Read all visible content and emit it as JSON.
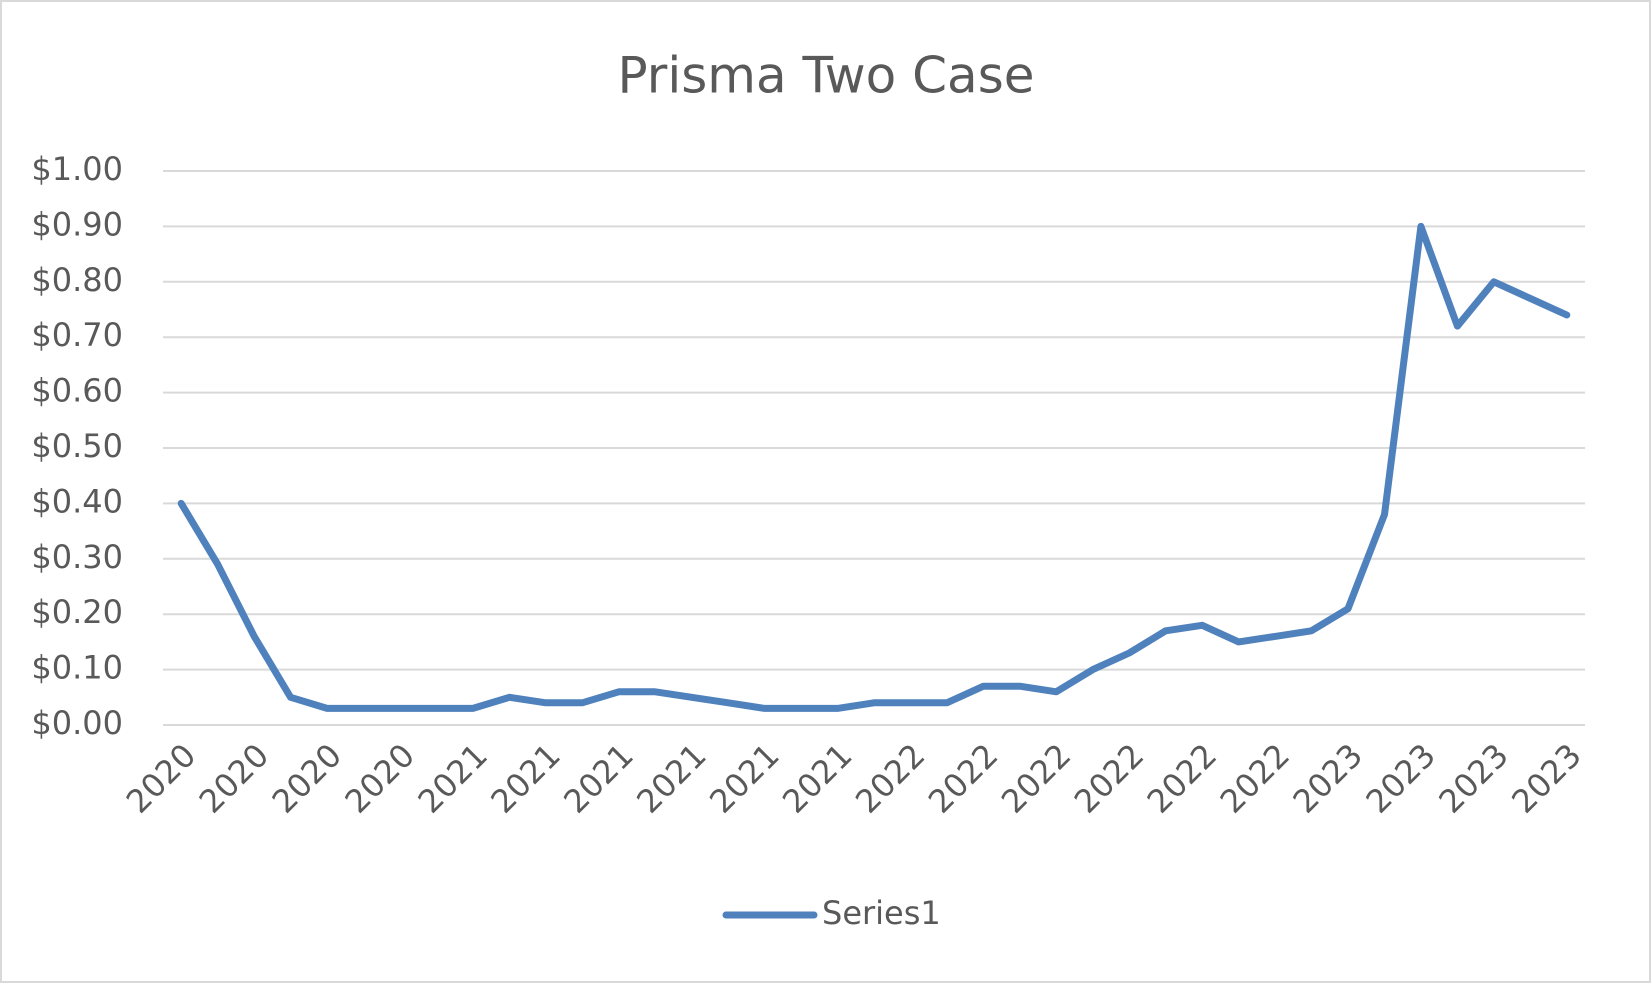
{
  "chart_data": {
    "type": "line",
    "title": "Prisma Two Case",
    "categories": [
      "2020",
      null,
      "2020",
      null,
      "2020",
      null,
      "2020",
      null,
      "2021",
      null,
      "2021",
      null,
      "2021",
      null,
      "2021",
      null,
      "2021",
      null,
      "2021",
      null,
      "2022",
      null,
      "2022",
      null,
      "2022",
      null,
      "2022",
      null,
      "2022",
      null,
      "2022",
      null,
      "2023",
      null,
      "2023",
      null,
      "2023",
      null,
      "2023"
    ],
    "series": [
      {
        "name": "Series1",
        "color": "#4f81bd",
        "values": [
          0.4,
          0.29,
          0.16,
          0.05,
          0.03,
          0.03,
          0.03,
          0.03,
          0.03,
          0.05,
          0.04,
          0.04,
          0.06,
          0.06,
          0.05,
          0.04,
          0.03,
          0.03,
          0.03,
          0.04,
          0.04,
          0.04,
          0.07,
          0.07,
          0.06,
          0.1,
          0.13,
          0.17,
          0.18,
          0.15,
          0.16,
          0.17,
          0.21,
          0.38,
          0.9,
          0.72,
          0.8,
          0.77,
          0.74
        ]
      }
    ],
    "ylim": [
      0,
      1
    ],
    "yticks": [
      {
        "value": 0,
        "label": "$0.00"
      },
      {
        "value": 0.1,
        "label": "$0.10"
      },
      {
        "value": 0.2,
        "label": "$0.20"
      },
      {
        "value": 0.3,
        "label": "$0.30"
      },
      {
        "value": 0.4,
        "label": "$0.40"
      },
      {
        "value": 0.5,
        "label": "$0.50"
      },
      {
        "value": 0.6,
        "label": "$0.60"
      },
      {
        "value": 0.7,
        "label": "$0.70"
      },
      {
        "value": 0.8,
        "label": "$0.80"
      },
      {
        "value": 0.9,
        "label": "$0.90"
      },
      {
        "value": 1,
        "label": "$1.00"
      }
    ],
    "grid": true,
    "legend": "bottom"
  }
}
